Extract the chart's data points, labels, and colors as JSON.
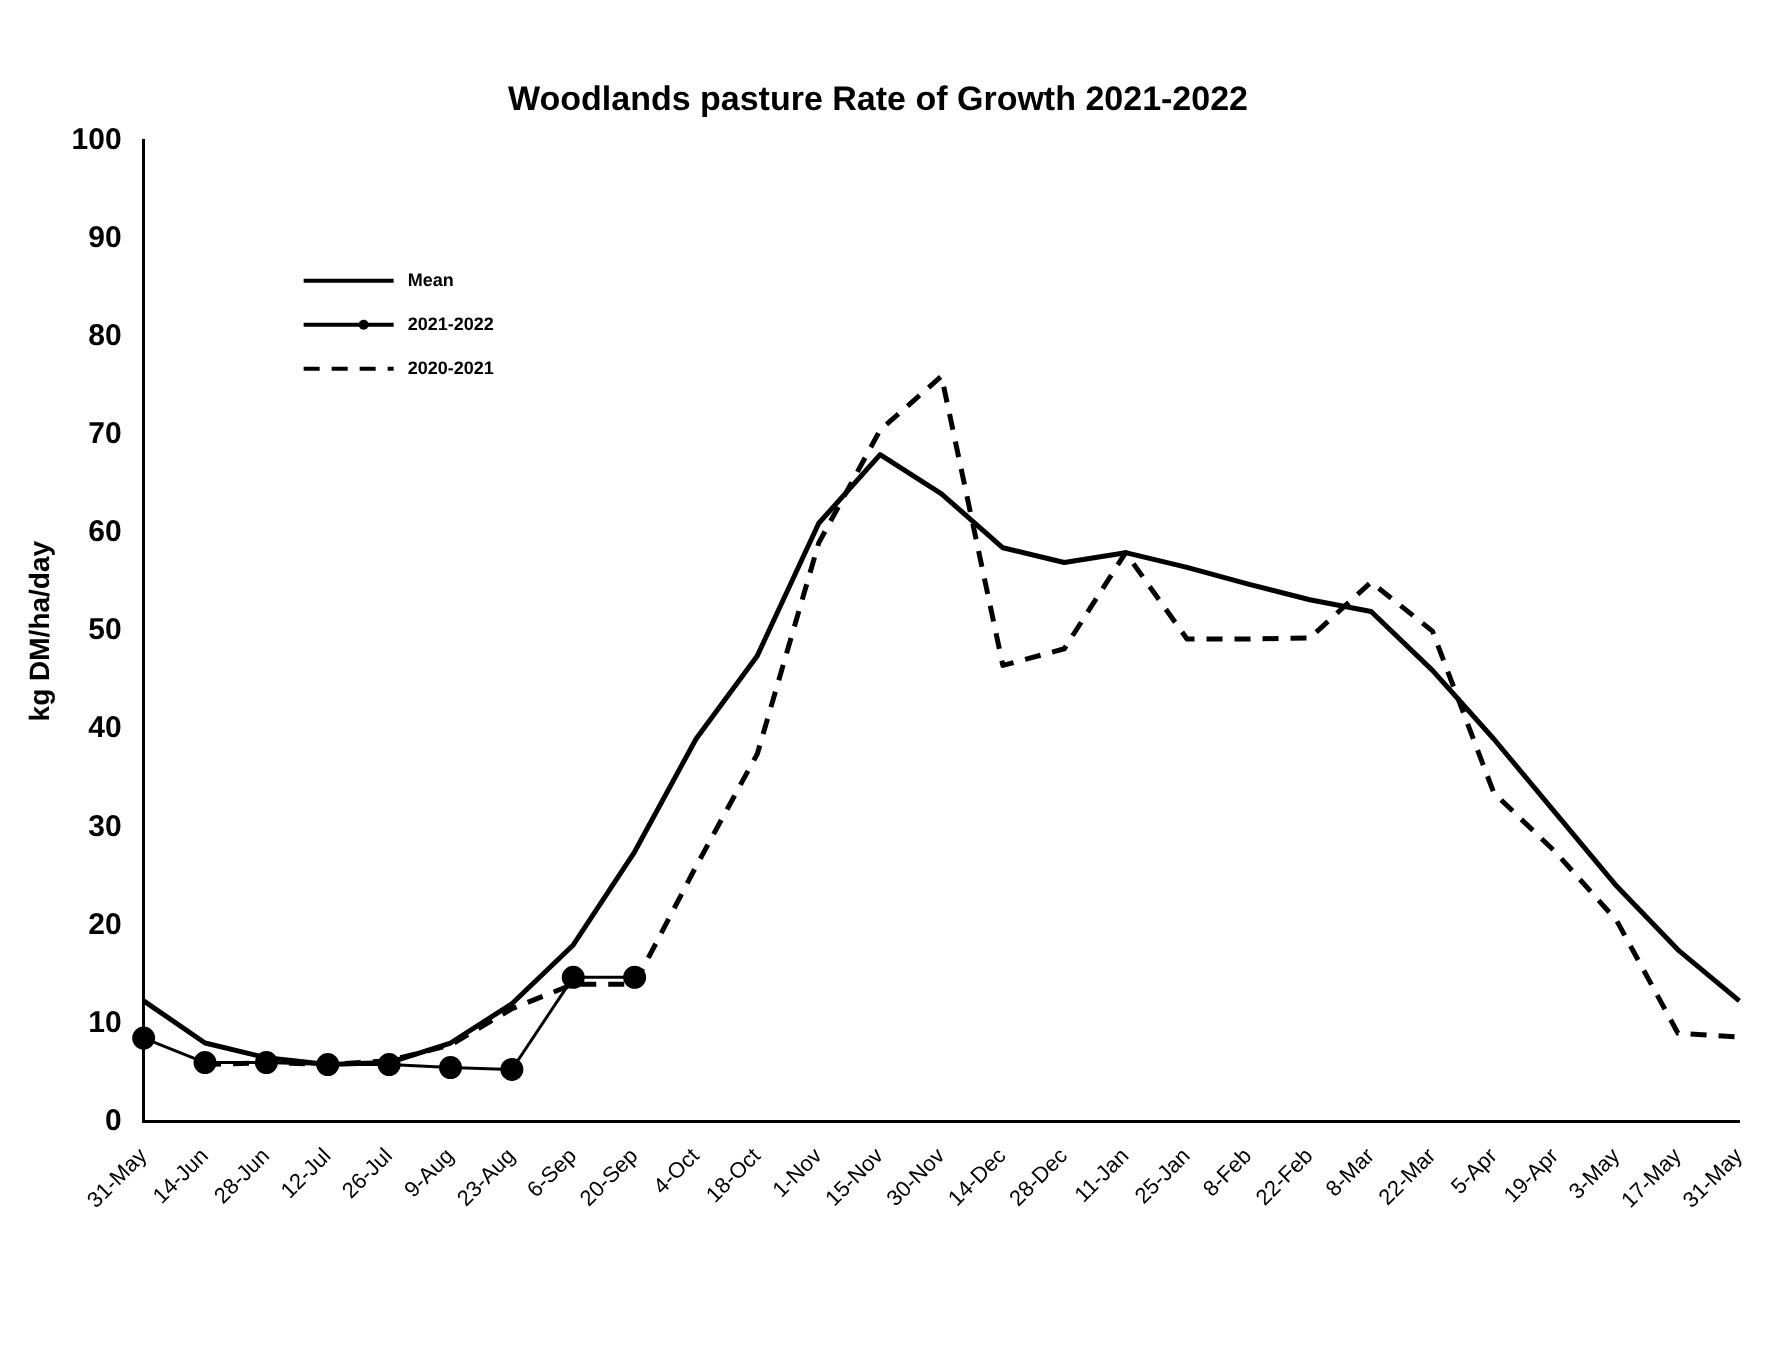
{
  "chart_data": {
    "type": "line",
    "title": "Woodlands pasture Rate of Growth 2021-2022",
    "ylabel": "kg DM/ha/day",
    "categories": [
      "31-May",
      "14-Jun",
      "28-Jun",
      "12-Jul",
      "26-Jul",
      "9-Aug",
      "23-Aug",
      "6-Sep",
      "20-Sep",
      "4-Oct",
      "18-Oct",
      "1-Nov",
      "15-Nov",
      "30-Nov",
      "14-Dec",
      "28-Dec",
      "11-Jan",
      "25-Jan",
      "8-Feb",
      "22-Feb",
      "8-Mar",
      "22-Mar",
      "5-Apr",
      "19-Apr",
      "3-May",
      "17-May",
      "31-May"
    ],
    "series": [
      {
        "name": "Mean",
        "color": "#000000",
        "marker": "none",
        "line_style": "solid",
        "values": [
          12.3,
          8,
          6.5,
          5.8,
          6,
          8,
          12,
          18,
          27.5,
          39,
          47.5,
          61,
          68,
          64,
          58.5,
          57,
          58,
          56.5,
          54.8,
          53.2,
          52,
          46,
          39,
          31.5,
          24,
          17.5,
          12.3
        ]
      },
      {
        "name": "2021-2022",
        "color": "#000000",
        "marker": "circle",
        "line_style": "solid",
        "values": [
          8.5,
          6,
          6,
          5.8,
          5.8,
          5.5,
          5.3,
          14.7,
          14.7,
          null,
          null,
          null,
          null,
          null,
          null,
          null,
          null,
          null,
          null,
          null,
          null,
          null,
          null,
          null,
          null,
          null,
          null
        ]
      },
      {
        "name": "2020-2021",
        "color": "#000000",
        "marker": "none",
        "line_style": "dashed",
        "values": [
          null,
          5.8,
          6,
          5.8,
          6.2,
          7.8,
          11.5,
          14,
          14,
          26,
          37.5,
          59,
          70.5,
          76,
          46.5,
          48.2,
          58,
          49.2,
          49.2,
          49.3,
          55,
          50,
          33.5,
          27.5,
          20.5,
          9,
          8.6
        ]
      }
    ],
    "ylim": [
      0,
      100
    ],
    "yticks": [
      0,
      10,
      20,
      30,
      40,
      50,
      60,
      70,
      80,
      90,
      100
    ],
    "grid": false,
    "legend": "top left"
  }
}
